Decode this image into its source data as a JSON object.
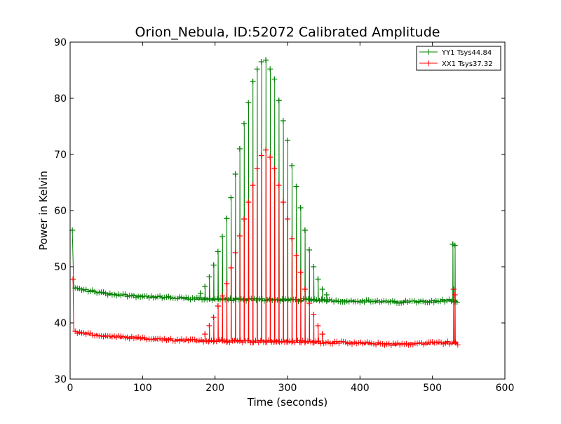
{
  "chart_data": {
    "type": "line",
    "title": "Orion_Nebula, ID:52072 Calibrated Amplitude",
    "xlabel": "Time (seconds)",
    "ylabel": "Power in Kelvin",
    "xlim": [
      0,
      600
    ],
    "ylim": [
      30,
      90
    ],
    "xticks": [
      0,
      100,
      200,
      300,
      400,
      500,
      600
    ],
    "yticks": [
      30,
      40,
      50,
      60,
      70,
      80,
      90
    ],
    "grid": false,
    "legend_position": "top-right",
    "marker": "+",
    "series": [
      {
        "name": "YY1 Tsys44.84",
        "color": "#008000",
        "baseline": [
          [
            5,
            46.2
          ],
          [
            50,
            45.2
          ],
          [
            100,
            44.7
          ],
          [
            150,
            44.4
          ],
          [
            200,
            44.2
          ],
          [
            300,
            44.1
          ],
          [
            400,
            43.9
          ],
          [
            450,
            43.7
          ],
          [
            500,
            43.9
          ],
          [
            527,
            44.0
          ],
          [
            535,
            43.8
          ]
        ],
        "spikes": [
          [
            3,
            56.5
          ],
          [
            180,
            45.3
          ],
          [
            186,
            46.5
          ],
          [
            192,
            48.2
          ],
          [
            198,
            50.3
          ],
          [
            204,
            52.7
          ],
          [
            210,
            55.4
          ],
          [
            216,
            58.6
          ],
          [
            222,
            62.3
          ],
          [
            228,
            66.5
          ],
          [
            234,
            71.0
          ],
          [
            240,
            75.5
          ],
          [
            246,
            79.2
          ],
          [
            252,
            83.0
          ],
          [
            258,
            85.2
          ],
          [
            264,
            86.5
          ],
          [
            270,
            86.8
          ],
          [
            276,
            85.2
          ],
          [
            282,
            83.4
          ],
          [
            288,
            79.6
          ],
          [
            294,
            76.0
          ],
          [
            300,
            72.5
          ],
          [
            306,
            68.0
          ],
          [
            312,
            64.3
          ],
          [
            318,
            60.5
          ],
          [
            324,
            56.5
          ],
          [
            330,
            53.0
          ],
          [
            336,
            50.0
          ],
          [
            342,
            47.8
          ],
          [
            348,
            46.0
          ],
          [
            354,
            45.0
          ],
          [
            528,
            54.0
          ],
          [
            531,
            53.8
          ]
        ]
      },
      {
        "name": "XX1 Tsys37.32",
        "color": "#ff0000",
        "baseline": [
          [
            5,
            38.4
          ],
          [
            50,
            37.6
          ],
          [
            100,
            37.2
          ],
          [
            150,
            36.9
          ],
          [
            200,
            36.8
          ],
          [
            300,
            36.7
          ],
          [
            400,
            36.4
          ],
          [
            450,
            36.2
          ],
          [
            500,
            36.4
          ],
          [
            527,
            36.5
          ],
          [
            535,
            36.3
          ]
        ],
        "spikes": [
          [
            4,
            47.8
          ],
          [
            186,
            38.0
          ],
          [
            192,
            39.5
          ],
          [
            198,
            41.0
          ],
          [
            204,
            43.0
          ],
          [
            210,
            44.8
          ],
          [
            216,
            47.0
          ],
          [
            222,
            49.8
          ],
          [
            228,
            52.5
          ],
          [
            234,
            55.5
          ],
          [
            240,
            58.5
          ],
          [
            246,
            61.5
          ],
          [
            252,
            64.5
          ],
          [
            258,
            67.5
          ],
          [
            264,
            69.8
          ],
          [
            270,
            70.8
          ],
          [
            276,
            69.5
          ],
          [
            282,
            67.5
          ],
          [
            288,
            64.5
          ],
          [
            294,
            61.5
          ],
          [
            300,
            58.5
          ],
          [
            306,
            55.0
          ],
          [
            312,
            52.0
          ],
          [
            318,
            49.0
          ],
          [
            324,
            46.0
          ],
          [
            330,
            43.5
          ],
          [
            336,
            41.5
          ],
          [
            342,
            39.5
          ],
          [
            348,
            38.0
          ],
          [
            529,
            46.0
          ],
          [
            531,
            45.0
          ]
        ]
      }
    ]
  }
}
